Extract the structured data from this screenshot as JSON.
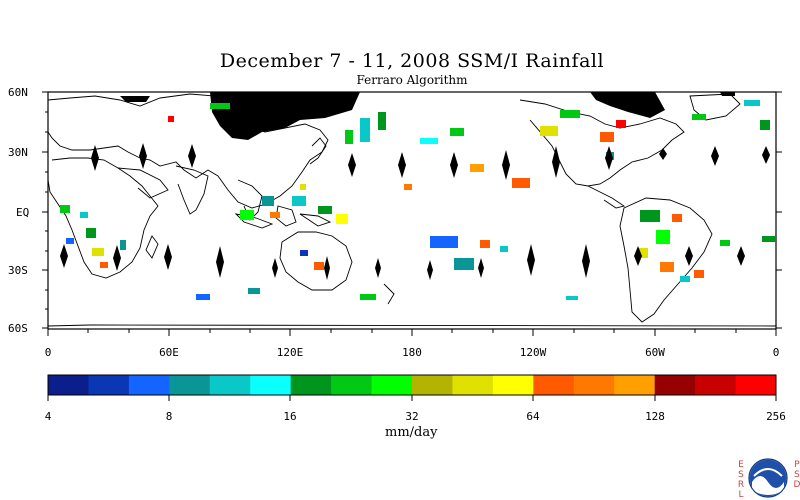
{
  "title": "December 7 - 11, 2008 SSM/I Rainfall",
  "subtitle": "Ferraro Algorithm",
  "map": {
    "lat_labels": [
      "60N",
      "30N",
      "EQ",
      "30S",
      "60S"
    ],
    "lon_labels": [
      "0",
      "60E",
      "120E",
      "180",
      "120W",
      "60W",
      "0"
    ]
  },
  "colorbar": {
    "colors": [
      "#0a1e8c",
      "#0a37b4",
      "#1464ff",
      "#0a9696",
      "#0ac8c8",
      "#0affff",
      "#00961e",
      "#00c814",
      "#00ff00",
      "#b4b400",
      "#e1e100",
      "#ffff00",
      "#ff5a00",
      "#ff7800",
      "#ffa000",
      "#960000",
      "#c80000",
      "#ff0000"
    ],
    "tick_labels": [
      "4",
      "8",
      "16",
      "32",
      "64",
      "128",
      "256"
    ],
    "unit": "mm/day"
  },
  "logo": {
    "left_text": "ESRL",
    "right_text": "PSD",
    "name": "NOAA"
  }
}
